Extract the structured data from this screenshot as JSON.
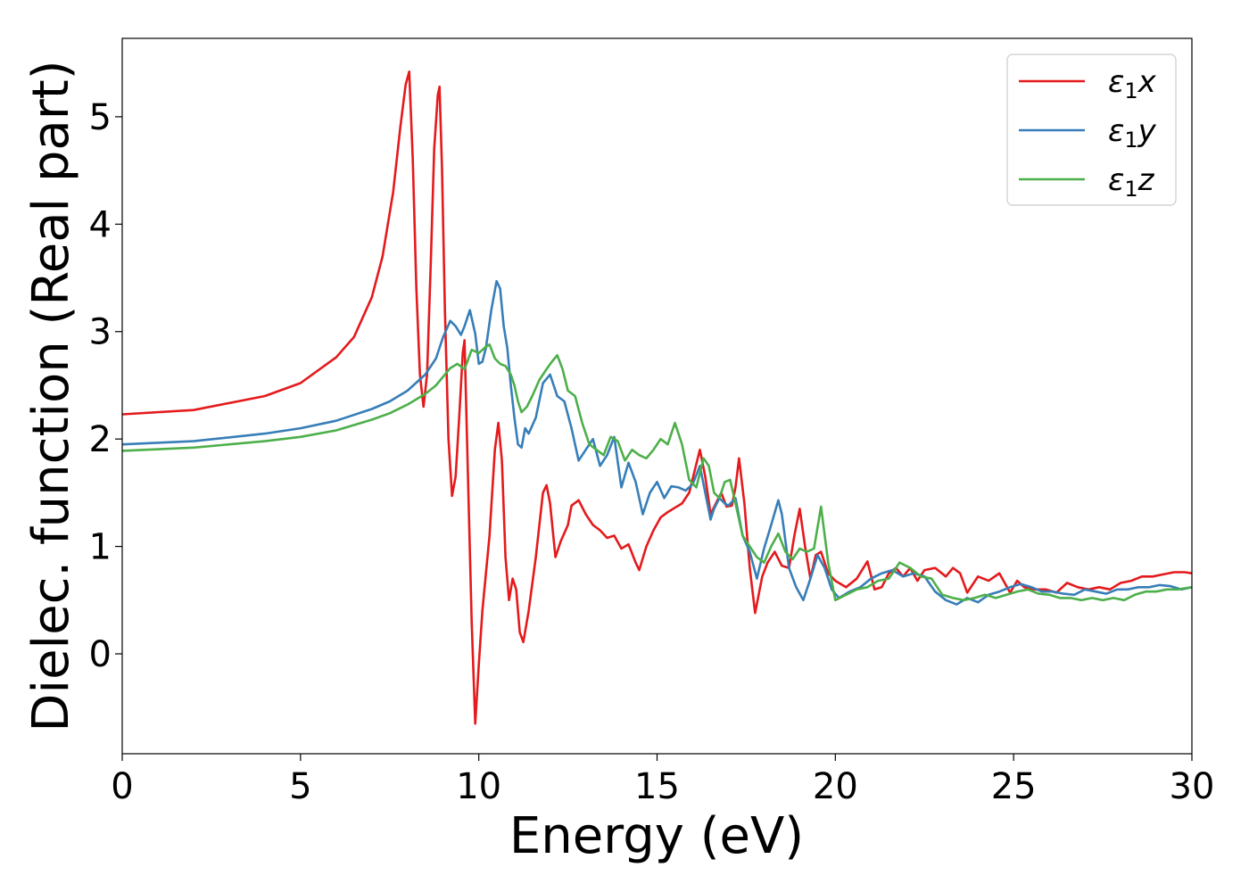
{
  "chart_data": {
    "type": "line",
    "xlabel": "Energy (eV)",
    "ylabel": "Dielec. function (Real part)",
    "xlim": [
      0,
      30
    ],
    "ylim": [
      -0.93,
      5.73
    ],
    "xticks": [
      0,
      5,
      10,
      15,
      20,
      25,
      30
    ],
    "xtick_labels": [
      "0",
      "5",
      "10",
      "15",
      "20",
      "25",
      "30"
    ],
    "yticks": [
      0,
      1,
      2,
      3,
      4,
      5
    ],
    "ytick_labels": [
      "0",
      "1",
      "2",
      "3",
      "4",
      "5"
    ],
    "grid": false,
    "legend_placement": "top-right",
    "series": [
      {
        "name": "ε1x",
        "legend_symbol": "ε",
        "legend_subscript": "1",
        "legend_var": "x",
        "color": "#e41a1c",
        "x": [
          0,
          2,
          4,
          5,
          6,
          6.5,
          7,
          7.3,
          7.6,
          7.8,
          7.95,
          8.05,
          8.15,
          8.25,
          8.35,
          8.45,
          8.55,
          8.65,
          8.75,
          8.85,
          8.9,
          8.97,
          9.05,
          9.15,
          9.25,
          9.35,
          9.45,
          9.55,
          9.6,
          9.7,
          9.8,
          9.9,
          10.0,
          10.1,
          10.3,
          10.45,
          10.55,
          10.65,
          10.75,
          10.85,
          10.95,
          11.05,
          11.15,
          11.25,
          11.4,
          11.6,
          11.8,
          11.9,
          12.0,
          12.15,
          12.3,
          12.5,
          12.6,
          12.8,
          13.0,
          13.2,
          13.4,
          13.6,
          13.8,
          14.0,
          14.2,
          14.4,
          14.5,
          14.7,
          14.9,
          15.1,
          15.3,
          15.5,
          15.7,
          15.9,
          16.05,
          16.2,
          16.35,
          16.5,
          16.65,
          16.8,
          16.95,
          17.1,
          17.2,
          17.3,
          17.45,
          17.6,
          17.75,
          17.85,
          17.95,
          18.1,
          18.3,
          18.5,
          18.7,
          18.85,
          19.0,
          19.15,
          19.3,
          19.45,
          19.6,
          19.8,
          20.0,
          20.3,
          20.6,
          20.9,
          21.1,
          21.3,
          21.5,
          21.7,
          21.9,
          22.1,
          22.3,
          22.5,
          22.8,
          23.1,
          23.3,
          23.5,
          23.7,
          24.0,
          24.3,
          24.6,
          24.9,
          25.1,
          25.3,
          25.6,
          25.9,
          26.2,
          26.5,
          26.8,
          27.1,
          27.4,
          27.7,
          28.0,
          28.3,
          28.6,
          28.9,
          29.2,
          29.5,
          29.8,
          30.0
        ],
        "y": [
          2.23,
          2.27,
          2.4,
          2.52,
          2.76,
          2.95,
          3.32,
          3.7,
          4.3,
          4.9,
          5.3,
          5.42,
          4.6,
          3.4,
          2.6,
          2.3,
          2.6,
          3.6,
          4.7,
          5.2,
          5.28,
          4.5,
          3.2,
          2.0,
          1.47,
          1.65,
          2.2,
          2.8,
          2.92,
          1.6,
          0.3,
          -0.65,
          -0.1,
          0.4,
          1.1,
          1.9,
          2.15,
          1.8,
          0.9,
          0.5,
          0.7,
          0.6,
          0.2,
          0.11,
          0.4,
          0.9,
          1.5,
          1.57,
          1.4,
          0.9,
          1.05,
          1.2,
          1.38,
          1.43,
          1.3,
          1.2,
          1.15,
          1.08,
          1.1,
          0.98,
          1.02,
          0.85,
          0.78,
          1.0,
          1.15,
          1.27,
          1.32,
          1.36,
          1.4,
          1.5,
          1.7,
          1.9,
          1.65,
          1.3,
          1.4,
          1.5,
          1.37,
          1.38,
          1.55,
          1.82,
          1.4,
          0.8,
          0.38,
          0.55,
          0.72,
          0.85,
          0.95,
          0.82,
          0.8,
          1.1,
          1.35,
          1.0,
          0.7,
          0.92,
          0.95,
          0.75,
          0.68,
          0.62,
          0.7,
          0.86,
          0.6,
          0.62,
          0.75,
          0.8,
          0.72,
          0.8,
          0.68,
          0.78,
          0.8,
          0.72,
          0.8,
          0.75,
          0.57,
          0.72,
          0.68,
          0.75,
          0.57,
          0.68,
          0.62,
          0.6,
          0.6,
          0.57,
          0.66,
          0.62,
          0.6,
          0.62,
          0.6,
          0.66,
          0.68,
          0.72,
          0.72,
          0.74,
          0.76,
          0.76,
          0.75
        ]
      },
      {
        "name": "ε1y",
        "legend_symbol": "ε",
        "legend_subscript": "1",
        "legend_var": "y",
        "color": "#377eb8",
        "x": [
          0,
          2,
          4,
          5,
          6,
          7,
          7.5,
          8.0,
          8.5,
          8.8,
          9.0,
          9.2,
          9.35,
          9.5,
          9.6,
          9.75,
          9.9,
          10.0,
          10.1,
          10.2,
          10.35,
          10.5,
          10.6,
          10.7,
          10.8,
          10.9,
          11.0,
          11.1,
          11.2,
          11.3,
          11.4,
          11.6,
          11.8,
          12.0,
          12.2,
          12.4,
          12.6,
          12.8,
          13.0,
          13.2,
          13.4,
          13.6,
          13.8,
          14.0,
          14.2,
          14.4,
          14.6,
          14.8,
          15.0,
          15.2,
          15.4,
          15.6,
          15.8,
          16.0,
          16.2,
          16.35,
          16.5,
          16.6,
          16.75,
          16.9,
          17.0,
          17.2,
          17.4,
          17.6,
          17.8,
          18.0,
          18.2,
          18.4,
          18.5,
          18.7,
          18.9,
          19.1,
          19.3,
          19.5,
          19.7,
          19.9,
          20.1,
          20.4,
          20.7,
          21.0,
          21.3,
          21.6,
          21.9,
          22.2,
          22.5,
          22.8,
          23.1,
          23.4,
          23.7,
          24.0,
          24.3,
          24.6,
          24.9,
          25.2,
          25.5,
          25.8,
          26.1,
          26.4,
          26.7,
          27.0,
          27.3,
          27.6,
          27.9,
          28.2,
          28.5,
          28.8,
          29.1,
          29.4,
          29.7,
          30.0
        ],
        "y": [
          1.95,
          1.98,
          2.05,
          2.1,
          2.17,
          2.28,
          2.35,
          2.45,
          2.6,
          2.75,
          2.95,
          3.1,
          3.05,
          2.97,
          3.05,
          3.2,
          2.98,
          2.7,
          2.72,
          2.85,
          3.2,
          3.47,
          3.4,
          3.05,
          2.85,
          2.5,
          2.2,
          1.95,
          1.92,
          2.1,
          2.05,
          2.2,
          2.52,
          2.6,
          2.4,
          2.35,
          2.1,
          1.8,
          1.9,
          2.0,
          1.75,
          1.85,
          2.02,
          1.55,
          1.78,
          1.6,
          1.3,
          1.5,
          1.6,
          1.45,
          1.56,
          1.55,
          1.52,
          1.58,
          1.75,
          1.5,
          1.25,
          1.35,
          1.45,
          1.4,
          1.38,
          1.45,
          1.1,
          0.95,
          0.7,
          0.98,
          1.2,
          1.43,
          1.3,
          0.8,
          0.62,
          0.5,
          0.7,
          0.92,
          0.8,
          0.6,
          0.52,
          0.58,
          0.62,
          0.7,
          0.75,
          0.78,
          0.72,
          0.75,
          0.72,
          0.58,
          0.5,
          0.46,
          0.52,
          0.48,
          0.55,
          0.58,
          0.62,
          0.65,
          0.62,
          0.58,
          0.58,
          0.56,
          0.55,
          0.6,
          0.58,
          0.56,
          0.6,
          0.6,
          0.62,
          0.62,
          0.64,
          0.63,
          0.6,
          0.62
        ]
      },
      {
        "name": "ε1z",
        "legend_symbol": "ε",
        "legend_subscript": "1",
        "legend_var": "z",
        "color": "#4daf4a",
        "x": [
          0,
          2,
          4,
          5,
          6,
          7,
          7.5,
          8.0,
          8.5,
          8.8,
          9.0,
          9.2,
          9.4,
          9.6,
          9.8,
          10.0,
          10.2,
          10.3,
          10.45,
          10.6,
          10.75,
          10.9,
          11.0,
          11.1,
          11.2,
          11.35,
          11.5,
          11.7,
          11.9,
          12.05,
          12.2,
          12.35,
          12.5,
          12.7,
          12.9,
          13.1,
          13.3,
          13.5,
          13.7,
          13.9,
          14.1,
          14.3,
          14.5,
          14.7,
          14.9,
          15.1,
          15.3,
          15.5,
          15.7,
          15.9,
          16.1,
          16.3,
          16.45,
          16.6,
          16.75,
          16.9,
          17.05,
          17.2,
          17.4,
          17.6,
          17.8,
          18.0,
          18.2,
          18.4,
          18.6,
          18.8,
          19.0,
          19.2,
          19.4,
          19.6,
          19.8,
          20.0,
          20.3,
          20.6,
          20.9,
          21.2,
          21.5,
          21.8,
          22.1,
          22.4,
          22.7,
          23.0,
          23.3,
          23.6,
          23.9,
          24.2,
          24.5,
          24.8,
          25.1,
          25.4,
          25.7,
          26.0,
          26.3,
          26.6,
          26.9,
          27.2,
          27.5,
          27.8,
          28.1,
          28.4,
          28.7,
          29.0,
          29.3,
          29.6,
          30.0
        ],
        "y": [
          1.89,
          1.92,
          1.98,
          2.02,
          2.08,
          2.18,
          2.24,
          2.32,
          2.42,
          2.5,
          2.58,
          2.66,
          2.7,
          2.65,
          2.83,
          2.8,
          2.86,
          2.88,
          2.75,
          2.7,
          2.68,
          2.6,
          2.5,
          2.35,
          2.25,
          2.3,
          2.4,
          2.55,
          2.65,
          2.72,
          2.78,
          2.65,
          2.45,
          2.4,
          2.15,
          1.95,
          1.9,
          1.85,
          2.02,
          1.98,
          1.8,
          1.9,
          1.85,
          1.82,
          1.9,
          2.0,
          1.95,
          2.15,
          1.95,
          1.62,
          1.55,
          1.82,
          1.75,
          1.5,
          1.45,
          1.6,
          1.62,
          1.4,
          1.1,
          1.0,
          0.9,
          0.85,
          1.0,
          1.12,
          0.95,
          0.88,
          0.98,
          0.95,
          0.98,
          1.37,
          0.85,
          0.5,
          0.55,
          0.6,
          0.62,
          0.68,
          0.7,
          0.85,
          0.8,
          0.72,
          0.7,
          0.55,
          0.52,
          0.5,
          0.52,
          0.55,
          0.52,
          0.55,
          0.58,
          0.6,
          0.56,
          0.55,
          0.52,
          0.52,
          0.5,
          0.52,
          0.5,
          0.52,
          0.5,
          0.55,
          0.58,
          0.58,
          0.6,
          0.6,
          0.62
        ]
      }
    ]
  }
}
